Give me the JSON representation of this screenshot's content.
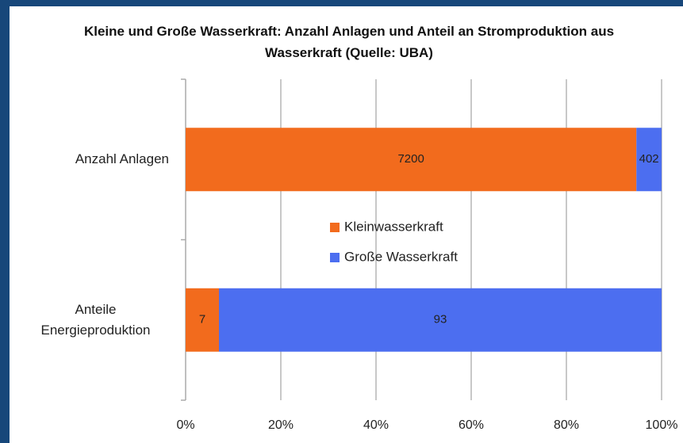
{
  "chart_data": {
    "type": "bar",
    "orientation": "horizontal",
    "stacking": "percent",
    "title": "Kleine und Große Wasserkraft: Anzahl Anlagen und Anteil an Stromproduktion aus Wasserkraft (Quelle: UBA)",
    "categories": [
      "Anzahl Anlagen",
      "Anteile Energieproduktion"
    ],
    "series": [
      {
        "name": "Kleinwasserkraft",
        "color": "#f26b1d",
        "values": [
          7200,
          7
        ]
      },
      {
        "name": "Große Wasserkraft",
        "color": "#4c6ef0",
        "values": [
          402,
          93
        ]
      }
    ],
    "xlim": [
      0,
      100
    ],
    "xticks": [
      {
        "value": 0,
        "label": "0%"
      },
      {
        "value": 20,
        "label": "20%"
      },
      {
        "value": 40,
        "label": "40%"
      },
      {
        "value": 60,
        "label": "60%"
      },
      {
        "value": 80,
        "label": "80%"
      },
      {
        "value": 100,
        "label": "100%"
      }
    ],
    "grid": true,
    "legend": "center"
  }
}
